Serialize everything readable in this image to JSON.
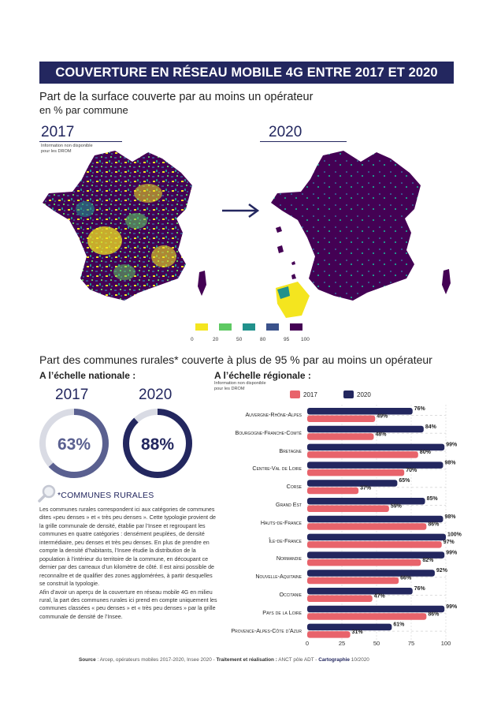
{
  "header": {
    "title": "COUVERTURE EN RÉSEAU MOBILE 4G ENTRE 2017 ET 2020"
  },
  "maps": {
    "title": "Part de la surface couverte par au moins un opérateur",
    "subtitle": "en % par commune",
    "left_year": "2017",
    "right_year": "2020",
    "drom_note_line1": "Information non disponible",
    "drom_note_line2": "pour les DROM",
    "scale_labels": [
      "0",
      "20",
      "50",
      "80",
      "95",
      "100"
    ],
    "scale_colors": [
      "#f4e51f",
      "#5ec962",
      "#21918c",
      "#3b528b",
      "#440154"
    ]
  },
  "rural": {
    "title": "Part des communes rurales* couverte à plus de 95 % par au moins un opérateur",
    "national_label": "A l’échelle nationale :",
    "regional_label": "A l’échelle régionale :",
    "regional_note_line1": "Information non disponible",
    "regional_note_line2": "pour les DROM",
    "national": [
      {
        "year": "2017",
        "value": 63,
        "label": "63%",
        "color": "#5a6090"
      },
      {
        "year": "2020",
        "value": 88,
        "label": "88%",
        "color": "#23275f"
      }
    ],
    "definition_title": "*COMMUNES RURALES",
    "definition_text_1": "Les communes rurales correspondent ici aux catégories de communes dites «peu denses » et « très peu denses ». Cette typologie provient de la grille communale de densité, établie par l’Insee et regroupant les communes en quatre catégories : densément peuplées, de densité intermédiaire, peu denses et très peu denses. En plus de prendre en compte la densité d’habitants, l’Insee étudie la distribution de la population à l’intérieur du territoire de la commune, en découpant ce dernier par des carreaux d’un kilomètre de côté. Il est ainsi possible de reconnaître et de qualifier des zones agglomérées, à partir desquelles se construit la typologie.",
    "definition_text_2": "Afin d’avoir un aperçu de la couverture en réseau mobile 4G en milieu rural, la part des communes rurales ici prend en compte uniquement les communes classées « peu denses » et « très peu denses » par la grille communale de densité de l’Insee."
  },
  "chart_data": {
    "type": "bar",
    "orientation": "horizontal",
    "categories": [
      "Auvergne-Rhône-Alpes",
      "Bourgogne-Franche-Comté",
      "Bretagne",
      "Centre-Val de Loire",
      "Corse",
      "Grand Est",
      "Hauts-de-France",
      "Île-de-France",
      "Normandie",
      "Nouvelle-Aquitaine",
      "Occitanie",
      "Pays de la Loire",
      "Provence-Alpes-Côte d’Azur"
    ],
    "series": [
      {
        "name": "2017",
        "color": "#e8636b",
        "values": [
          49,
          48,
          80,
          70,
          37,
          59,
          86,
          97,
          82,
          66,
          47,
          86,
          31
        ],
        "labels": [
          "49%",
          "48%",
          "80%",
          "70%",
          "37%",
          "59%",
          "86%",
          "97%",
          "82%",
          "66%",
          "47%",
          "86%",
          "31%"
        ]
      },
      {
        "name": "2020",
        "color": "#23275f",
        "values": [
          76,
          84,
          99,
          98,
          65,
          85,
          98,
          100,
          99,
          92,
          76,
          99,
          61
        ],
        "labels": [
          "76%",
          "84%",
          "99%",
          "98%",
          "65%",
          "85%",
          "98%",
          "100%",
          "99%",
          "92%",
          "76%",
          "99%",
          "61%"
        ]
      }
    ],
    "xlim": [
      0,
      100
    ],
    "xticks": [
      "0",
      "25",
      "50",
      "75",
      "100"
    ],
    "legend": "top"
  },
  "footer": {
    "source_label": "Source",
    "source_text": " : Arcep, opérateurs mobiles 2017-2020, Insee 2020 - ",
    "treatment_label": "Traitement et réalisation :",
    "treatment_text": " ANCT pôle ADT - ",
    "carto_label": "Cartographie",
    "date": " 10/2020"
  }
}
